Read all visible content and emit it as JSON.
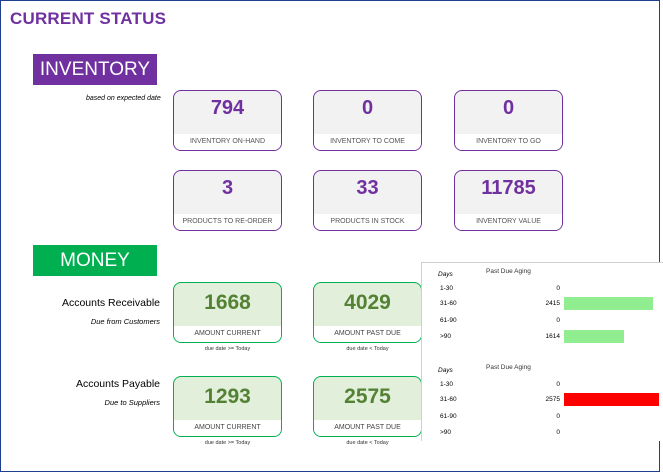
{
  "page": {
    "title": "CURRENT STATUS"
  },
  "inventory": {
    "banner": "INVENTORY",
    "note": "based on expected date",
    "cards": [
      {
        "value": "794",
        "label": "INVENTORY ON-HAND"
      },
      {
        "value": "0",
        "label": "INVENTORY TO COME"
      },
      {
        "value": "0",
        "label": "INVENTORY TO GO"
      },
      {
        "value": "3",
        "label": "PRODUCTS TO RE-ORDER"
      },
      {
        "value": "33",
        "label": "PRODUCTS IN STOCK"
      },
      {
        "value": "11785",
        "label": "INVENTORY VALUE"
      }
    ]
  },
  "money": {
    "banner": "MONEY",
    "receivable": {
      "title": "Accounts Receivable",
      "subtitle": "Due from Customers",
      "cards": [
        {
          "value": "1668",
          "label": "AMOUNT CURRENT",
          "note": "due date >= Today"
        },
        {
          "value": "4029",
          "label": "AMOUNT PAST DUE",
          "note": "due date < Today"
        }
      ]
    },
    "payable": {
      "title": "Accounts Payable",
      "subtitle": "Due to Suppliers",
      "cards": [
        {
          "value": "1293",
          "label": "AMOUNT CURRENT",
          "note": "due date >= Today"
        },
        {
          "value": "2575",
          "label": "AMOUNT PAST DUE",
          "note": "due date < Today"
        }
      ]
    }
  },
  "aging": {
    "max_value": 2575,
    "blocks": [
      {
        "days_header": "Days",
        "title": "Past Due Aging",
        "bar_color": "#90ee90",
        "rows": [
          {
            "days": "1-30",
            "amount": "0",
            "value": 0
          },
          {
            "days": "31-60",
            "amount": "2415",
            "value": 2415
          },
          {
            "days": "61-90",
            "amount": "0",
            "value": 0
          },
          {
            "days": ">90",
            "amount": "1614",
            "value": 1614
          }
        ]
      },
      {
        "days_header": "Days",
        "title": "Past Due Aging",
        "bar_color": "#ff0000",
        "rows": [
          {
            "days": "1-30",
            "amount": "0",
            "value": 0
          },
          {
            "days": "31-60",
            "amount": "2575",
            "value": 2575
          },
          {
            "days": "61-90",
            "amount": "0",
            "value": 0
          },
          {
            "days": ">90",
            "amount": "0",
            "value": 0
          }
        ]
      }
    ]
  }
}
